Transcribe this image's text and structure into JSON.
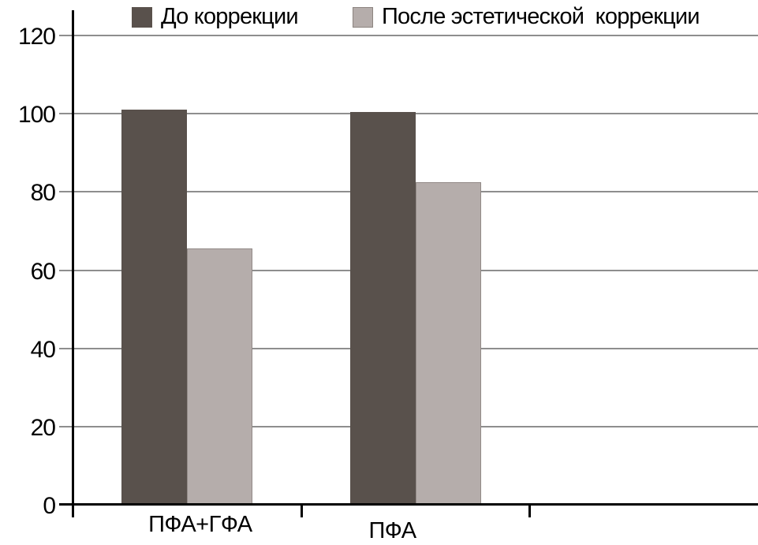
{
  "chart_data": {
    "type": "bar",
    "title": "",
    "categories": [
      "ПФА+ГФА",
      "ПФА"
    ],
    "series": [
      {
        "name": "До коррекции",
        "color": "#59514c",
        "values": [
          101,
          100.5
        ]
      },
      {
        "name": "После эстетической  коррекции",
        "color": "#b5adab",
        "values": [
          65.5,
          82.5
        ]
      }
    ],
    "xlabel": "",
    "ylabel": "",
    "ylim": [
      0,
      120
    ],
    "yticks": [
      0,
      20,
      40,
      60,
      80,
      100,
      120
    ],
    "x_slot_count": 3,
    "grid": true,
    "legend_position": "top",
    "axis_color": "#000000",
    "gridline_color": "#8e8e8e",
    "background_color": "#ffffff"
  }
}
